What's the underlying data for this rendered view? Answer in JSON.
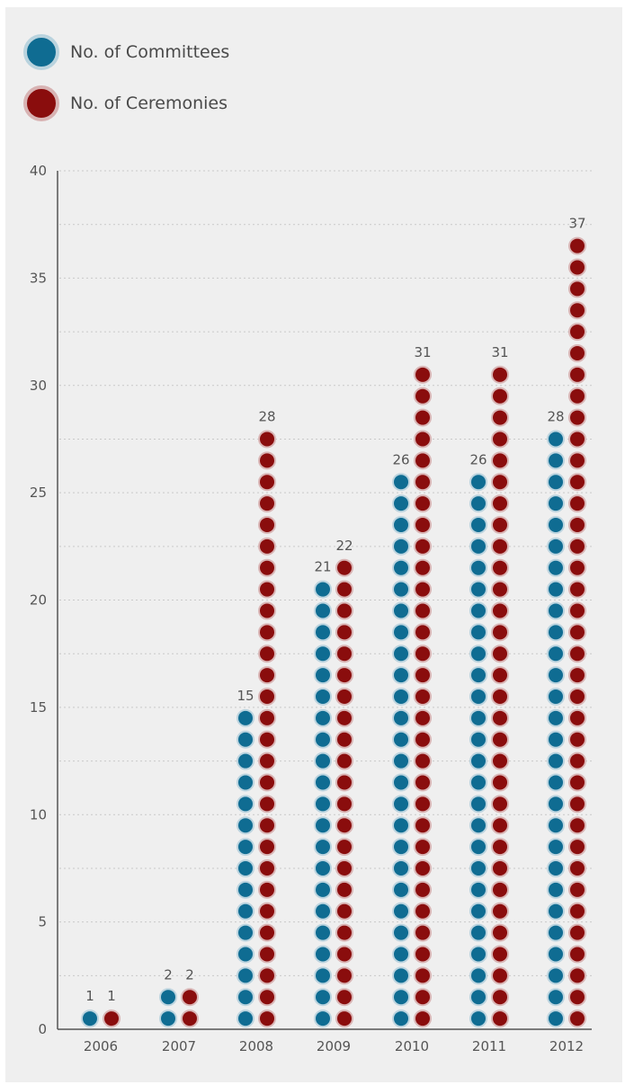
{
  "legend": [
    {
      "label": "No. of Committees",
      "color": "#0f6c92"
    },
    {
      "label": "No. of Ceremonies",
      "color": "#8a0d0d"
    }
  ],
  "chart_data": {
    "type": "bar",
    "categories": [
      "2006",
      "2007",
      "2008",
      "2009",
      "2010",
      "2011",
      "2012"
    ],
    "series": [
      {
        "name": "No. of Committees",
        "color": "#0f6c92",
        "values": [
          1,
          2,
          15,
          21,
          26,
          26,
          28
        ]
      },
      {
        "name": "No. of Ceremonies",
        "color": "#8a0d0d",
        "values": [
          1,
          2,
          28,
          22,
          31,
          31,
          37
        ]
      }
    ],
    "ylim": [
      0,
      40
    ],
    "yticks": [
      0,
      5,
      10,
      15,
      20,
      25,
      30,
      35,
      40
    ],
    "grid": true,
    "legend_position": "top-left"
  }
}
